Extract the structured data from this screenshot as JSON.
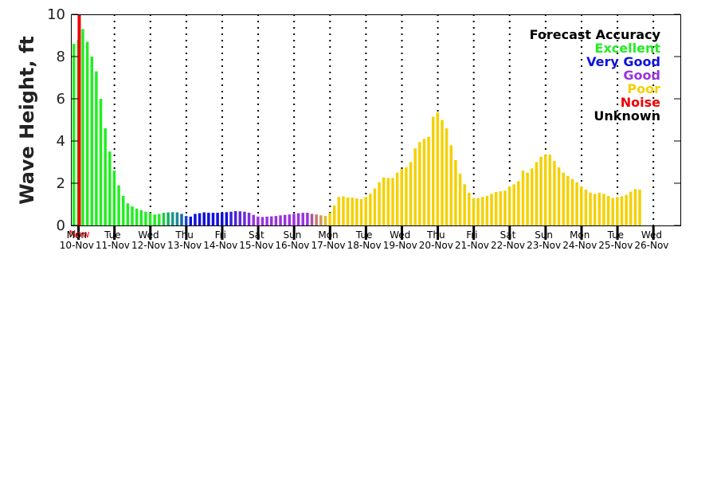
{
  "chart_data": {
    "type": "bar",
    "ylabel": "Wave Height, ft",
    "ylim": [
      0,
      10
    ],
    "yticks": [
      "0",
      "2",
      "4",
      "6",
      "8",
      "10"
    ],
    "x_range_days": [
      "Mon 10-Nov",
      "Wed 26-Nov"
    ],
    "days": [
      {
        "day": "Mon",
        "date": "10-Nov"
      },
      {
        "day": "Tue",
        "date": "11-Nov"
      },
      {
        "day": "Wed",
        "date": "12-Nov"
      },
      {
        "day": "Thu",
        "date": "13-Nov"
      },
      {
        "day": "Fri",
        "date": "14-Nov"
      },
      {
        "day": "Sat",
        "date": "15-Nov"
      },
      {
        "day": "Sun",
        "date": "16-Nov"
      },
      {
        "day": "Mon",
        "date": "17-Nov"
      },
      {
        "day": "Tue",
        "date": "18-Nov"
      },
      {
        "day": "Wed",
        "date": "19-Nov"
      },
      {
        "day": "Thu",
        "date": "20-Nov"
      },
      {
        "day": "Fri",
        "date": "21-Nov"
      },
      {
        "day": "Sat",
        "date": "22-Nov"
      },
      {
        "day": "Sun",
        "date": "23-Nov"
      },
      {
        "day": "Mon",
        "date": "24-Nov"
      },
      {
        "day": "Tue",
        "date": "25-Nov"
      },
      {
        "day": "Wed",
        "date": "26-Nov"
      }
    ],
    "now_label": "Now",
    "now_time_days": 0.21,
    "legend": {
      "title": "Forecast Accuracy",
      "placement": "top-right",
      "entries": [
        {
          "label": "Excellent",
          "color": "#22ee22"
        },
        {
          "label": "Very Good",
          "color": "#1010dd"
        },
        {
          "label": "Good",
          "color": "#9a33dd"
        },
        {
          "label": "Poor",
          "color": "#f5d000"
        },
        {
          "label": "Noise",
          "color": "#ee0000"
        },
        {
          "label": "Unknown",
          "color": "#000000"
        }
      ]
    },
    "bar_spacing_days": 0.125,
    "first_bar_day": 0.06,
    "values": [
      8.6,
      8.8,
      9.3,
      8.7,
      8.0,
      7.3,
      6.0,
      4.6,
      3.5,
      2.6,
      1.9,
      1.4,
      1.05,
      0.9,
      0.8,
      0.72,
      0.65,
      0.6,
      0.52,
      0.55,
      0.6,
      0.62,
      0.63,
      0.62,
      0.55,
      0.45,
      0.42,
      0.55,
      0.58,
      0.62,
      0.6,
      0.6,
      0.6,
      0.62,
      0.63,
      0.65,
      0.68,
      0.67,
      0.65,
      0.6,
      0.5,
      0.42,
      0.4,
      0.42,
      0.43,
      0.45,
      0.48,
      0.5,
      0.52,
      0.55,
      0.58,
      0.6,
      0.6,
      0.55,
      0.52,
      0.48,
      0.45,
      0.6,
      0.95,
      1.35,
      1.38,
      1.33,
      1.32,
      1.28,
      1.25,
      1.35,
      1.5,
      1.75,
      2.05,
      2.28,
      2.25,
      2.25,
      2.5,
      2.68,
      2.75,
      3.0,
      3.65,
      3.95,
      4.1,
      4.2,
      5.15,
      5.35,
      5.0,
      4.6,
      3.8,
      3.1,
      2.45,
      1.95,
      1.55,
      1.3,
      1.3,
      1.35,
      1.4,
      1.5,
      1.58,
      1.62,
      1.65,
      1.85,
      1.95,
      2.1,
      2.6,
      2.5,
      2.7,
      3.0,
      3.25,
      3.35,
      3.35,
      3.05,
      2.75,
      2.5,
      2.35,
      2.2,
      2.05,
      1.85,
      1.7,
      1.55,
      1.5,
      1.55,
      1.5,
      1.4,
      1.3,
      1.35,
      1.38,
      1.45,
      1.6,
      1.72,
      1.7
    ],
    "colors": [
      "#22ee22",
      "#22ee22",
      "#22ee22",
      "#22ee22",
      "#22ee22",
      "#22ee22",
      "#22ee22",
      "#22ee22",
      "#22ee22",
      "#22ee22",
      "#22ee22",
      "#22ee22",
      "#22ee22",
      "#22ee22",
      "#22ee22",
      "#22ee22",
      "#22ee22",
      "#22ee22",
      "#22ee22",
      "#22ee22",
      "#22cc44",
      "#1aaa66",
      "#1a9a80",
      "#1a8a99",
      "#1a66aa",
      "#1144cc",
      "#1010dd",
      "#1010dd",
      "#1010dd",
      "#1010dd",
      "#1010dd",
      "#1010dd",
      "#1010dd",
      "#1010dd",
      "#1010dd",
      "#3a20dd",
      "#4a25dd",
      "#5a28dd",
      "#6a2cdd",
      "#7a30dd",
      "#9a33dd",
      "#9a33dd",
      "#9a33dd",
      "#9a33dd",
      "#9a33dd",
      "#9a33dd",
      "#9a33dd",
      "#9a33dd",
      "#9a33dd",
      "#9a33dd",
      "#9a33dd",
      "#9a33dd",
      "#9a33dd",
      "#b05599",
      "#c07a77",
      "#d09a55",
      "#e0b833",
      "#f5d000",
      "#f5d000",
      "#f5d000",
      "#f5d000",
      "#f5d000",
      "#f5d000",
      "#f5d000",
      "#f5d000",
      "#f5d000",
      "#f5d000",
      "#f5d000",
      "#f5d000",
      "#f5d000",
      "#f5d000",
      "#f5d000",
      "#f5d000",
      "#f5d000",
      "#f5d000",
      "#f5d000",
      "#f5d000",
      "#f5d000",
      "#f5d000",
      "#f5d000",
      "#f5d000",
      "#f5d000",
      "#f5d000",
      "#f5d000",
      "#f5d000",
      "#f5d000",
      "#f5d000",
      "#f5d000",
      "#f5d000",
      "#f5d000",
      "#f5d000",
      "#f5d000",
      "#f5d000",
      "#f5d000",
      "#f5d000",
      "#f5d000",
      "#f5d000",
      "#f5d000",
      "#f5d000",
      "#f5d000",
      "#f5d000",
      "#f5d000",
      "#f5d000",
      "#f5d000",
      "#f5d000",
      "#f5d000",
      "#f5d000",
      "#f5d000",
      "#f5d000",
      "#f5d000",
      "#f5d000",
      "#f5d000",
      "#f5d000",
      "#f5d000",
      "#f5d000",
      "#f5d000",
      "#f5d000",
      "#f5d000",
      "#f5d000",
      "#f5d000",
      "#f5d000",
      "#f5d000",
      "#f5d000",
      "#f5d000",
      "#f5d000",
      "#f5d000",
      "#f5d000"
    ],
    "grid": "dotted vertical lines at day boundaries",
    "now_line_color": "#ee0000"
  }
}
